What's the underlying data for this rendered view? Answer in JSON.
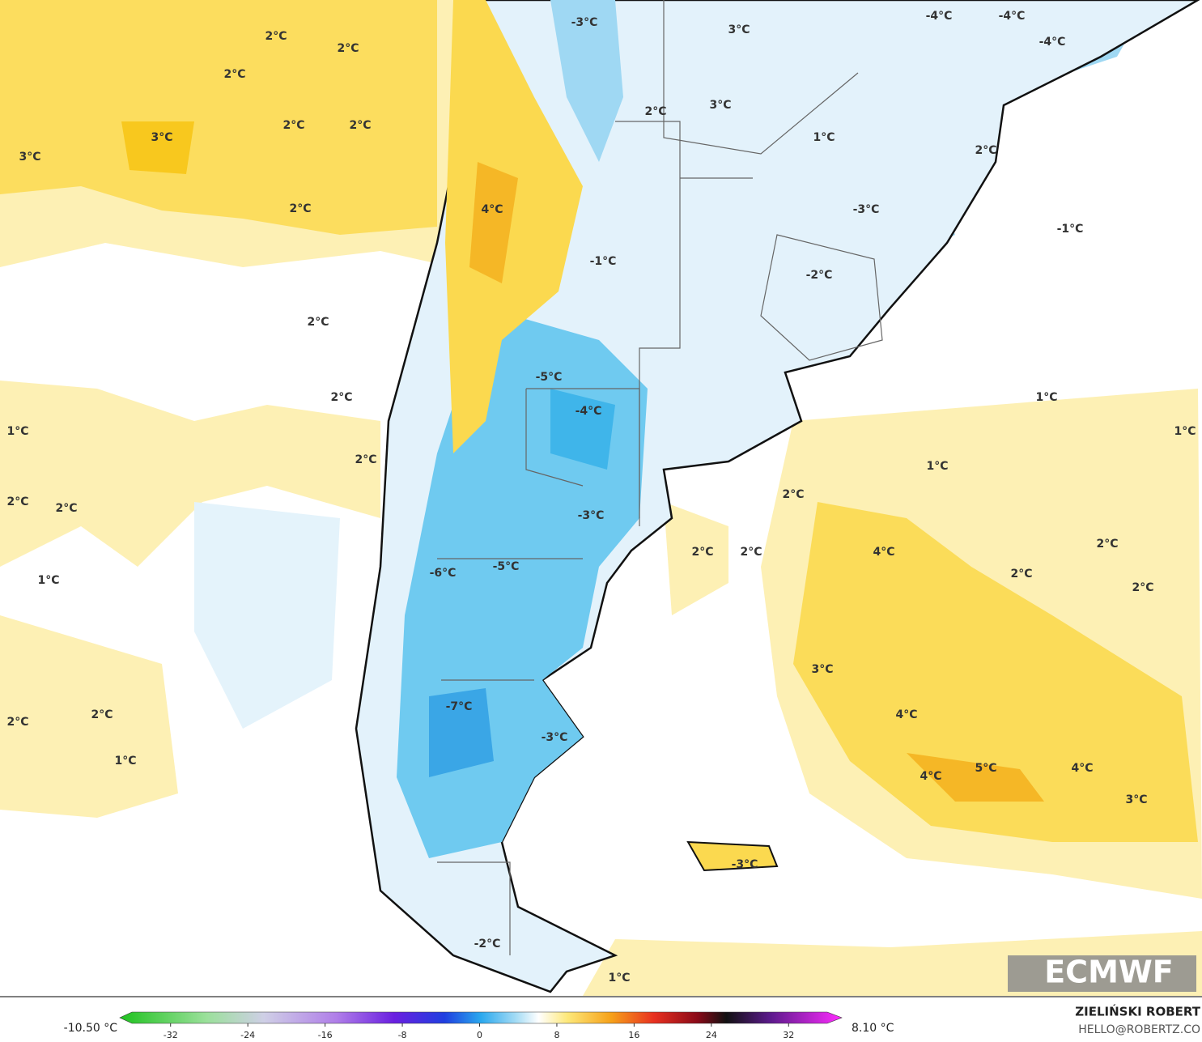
{
  "map": {
    "labels": [
      "2°C",
      "2°C",
      "2°C",
      "3°C",
      "3°C",
      "2°C",
      "2°C",
      "2°C",
      "2°C",
      "2°C",
      "2°C",
      "1°C",
      "2°C",
      "2°C",
      "1°C",
      "2°C",
      "2°C",
      "1°C",
      "-3°C",
      "3°C",
      "-4°C",
      "-4°C",
      "-4°C",
      "2°C",
      "3°C",
      "1°C",
      "2°C",
      "4°C",
      "-3°C",
      "-1°C",
      "-1°C",
      "-2°C",
      "-5°C",
      "-4°C",
      "1°C",
      "1°C",
      "1°C",
      "2°C",
      "-3°C",
      "2°C",
      "2°C",
      "4°C",
      "2°C",
      "2°C",
      "2°C",
      "-6°C",
      "-5°C",
      "3°C",
      "4°C",
      "-7°C",
      "-3°C",
      "4°C",
      "5°C",
      "4°C",
      "3°C",
      "-3°C",
      "1°C",
      "-2°C"
    ]
  },
  "colorbar": {
    "min_label": "-10.50 °C",
    "max_label": "8.10 °C",
    "range": [
      -36,
      36
    ],
    "ticks": [
      -32,
      -24,
      -16,
      -8,
      0,
      8,
      16,
      24,
      32
    ]
  },
  "credits": {
    "author": "ZIELIŃSKI ROBERT",
    "email": "HELLO@ROBERTZ.CO",
    "logo": "ECMWF"
  }
}
